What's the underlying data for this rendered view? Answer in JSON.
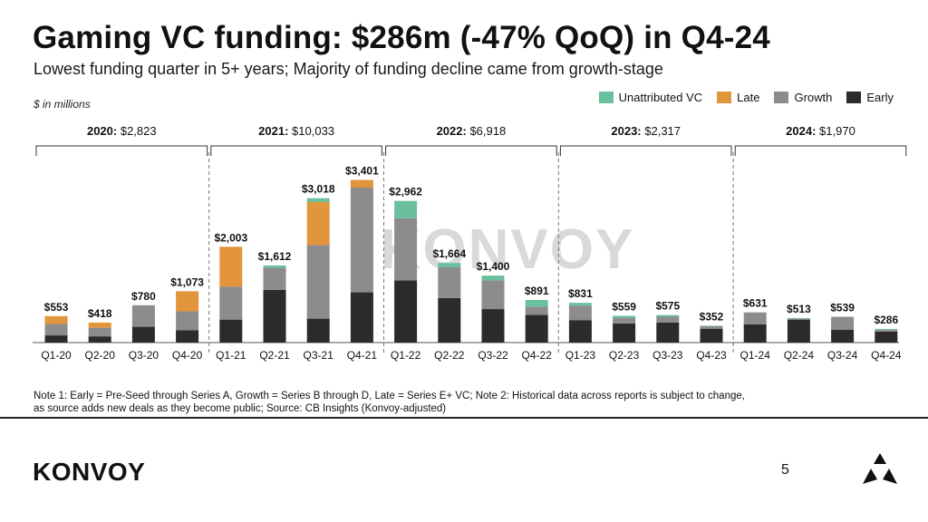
{
  "slide": {
    "title": "Gaming VC funding: $286m (-47% QoQ) in Q4-24",
    "subtitle": "Lowest funding quarter in 5+ years; Majority of funding decline came from growth-stage",
    "units": "$ in millions",
    "note_line1": "Note 1: Early = Pre-Seed through Series A, Growth = Series B through D, Late = Series E+ VC; Note 2: Historical data across reports is subject to change,",
    "note_line2": "as source adds new deals as they become public; Source: CB Insights (Konvoy-adjusted)",
    "footer_logo": "KONVOY",
    "page_number": "5",
    "watermark": "KONVOY"
  },
  "colors": {
    "early": "#2b2b2b",
    "growth": "#8c8c8c",
    "late": "#e2953a",
    "unattributed": "#6abf9c"
  },
  "chart_data": {
    "type": "bar",
    "stacked": true,
    "categories": [
      "Q1-20",
      "Q2-20",
      "Q3-20",
      "Q4-20",
      "Q1-21",
      "Q2-21",
      "Q3-21",
      "Q4-21",
      "Q1-22",
      "Q2-22",
      "Q3-22",
      "Q4-22",
      "Q1-23",
      "Q2-23",
      "Q3-23",
      "Q4-23",
      "Q1-24",
      "Q2-24",
      "Q3-24",
      "Q4-24"
    ],
    "totals": [
      553,
      418,
      780,
      1073,
      2003,
      1612,
      3018,
      3401,
      2962,
      1664,
      1400,
      891,
      831,
      559,
      575,
      352,
      631,
      513,
      539,
      286
    ],
    "total_labels": [
      "$553",
      "$418",
      "$780",
      "$1,073",
      "$2,003",
      "$1,612",
      "$3,018",
      "$3,401",
      "$2,962",
      "$1,664",
      "$1,400",
      "$891",
      "$831",
      "$559",
      "$575",
      "$352",
      "$631",
      "$513",
      "$539",
      "$286"
    ],
    "series": [
      {
        "name": "Early",
        "key": "early",
        "values": [
          150,
          130,
          330,
          260,
          480,
          1100,
          500,
          1050,
          1300,
          930,
          700,
          580,
          470,
          400,
          420,
          290,
          380,
          480,
          270,
          230
        ]
      },
      {
        "name": "Growth",
        "key": "growth",
        "values": [
          240,
          180,
          450,
          393,
          690,
          462,
          1538,
          2191,
          1300,
          644,
          600,
          171,
          300,
          120,
          120,
          50,
          251,
          20,
          269,
          40
        ]
      },
      {
        "name": "Late",
        "key": "late",
        "values": [
          163,
          108,
          0,
          420,
          833,
          0,
          900,
          160,
          0,
          0,
          0,
          0,
          0,
          0,
          0,
          0,
          0,
          0,
          0,
          0
        ]
      },
      {
        "name": "Unattributed VC",
        "key": "unattributed",
        "values": [
          0,
          0,
          0,
          0,
          0,
          50,
          80,
          0,
          362,
          90,
          100,
          140,
          61,
          39,
          35,
          12,
          0,
          13,
          0,
          16
        ]
      }
    ],
    "legend": [
      "Unattributed VC",
      "Late",
      "Growth",
      "Early"
    ],
    "years": [
      {
        "year": "2020:",
        "total": "$2,823"
      },
      {
        "year": "2021:",
        "total": "$10,033"
      },
      {
        "year": "2022:",
        "total": "$6,918"
      },
      {
        "year": "2023:",
        "total": "$2,317"
      },
      {
        "year": "2024:",
        "total": "$1,970"
      }
    ],
    "ylim": [
      0,
      3600
    ]
  }
}
